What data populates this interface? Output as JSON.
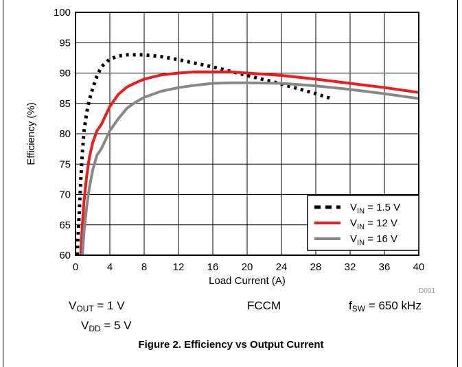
{
  "chart_data": {
    "type": "line",
    "title": "",
    "xlabel": "Load Current (A)",
    "ylabel": "Efficiency (%)",
    "xlim": [
      0,
      40
    ],
    "ylim": [
      60,
      100
    ],
    "xticks": [
      "0",
      "4",
      "8",
      "12",
      "16",
      "20",
      "24",
      "28",
      "32",
      "36",
      "40"
    ],
    "yticks": [
      "60",
      "65",
      "70",
      "75",
      "80",
      "85",
      "90",
      "95",
      "100"
    ],
    "grid": true,
    "legend_position": "bottom-right",
    "series": [
      {
        "name": "V_IN = 1.5 V",
        "name_main": "V",
        "name_sub": "IN",
        "name_rest": " = 1.5 V",
        "color": "#000000",
        "style": "dotted",
        "x": [
          0.2,
          0.4,
          0.6,
          0.8,
          1.0,
          1.3,
          1.6,
          2.0,
          2.5,
          3.0,
          4.0,
          5.0,
          6.0,
          8.0,
          10.0,
          12.0,
          14.0,
          16.0,
          18.0,
          20.0,
          22.0,
          24.0,
          26.0,
          28.0,
          29.8
        ],
        "y": [
          60.0,
          66.0,
          72.0,
          77.0,
          80.5,
          83.5,
          85.5,
          87.5,
          89.5,
          91.0,
          92.3,
          92.8,
          93.0,
          93.0,
          92.7,
          92.2,
          91.6,
          91.0,
          90.3,
          89.6,
          88.9,
          88.2,
          87.4,
          86.6,
          85.8
        ]
      },
      {
        "name": "V_IN = 12 V",
        "name_main": "V",
        "name_sub": "IN",
        "name_rest": " = 12 V",
        "color": "#ee1c1c",
        "style": "solid",
        "x": [
          0.6,
          0.8,
          1.0,
          1.3,
          1.6,
          2.0,
          2.5,
          3.0,
          3.5,
          4.0,
          5.0,
          6.0,
          7.0,
          8.0,
          10.0,
          12.0,
          14.0,
          16.0,
          18.0,
          20.0,
          24.0,
          28.0,
          32.0,
          36.0,
          40.0
        ],
        "y": [
          60.0,
          65.0,
          69.0,
          73.0,
          76.0,
          78.5,
          80.5,
          81.5,
          83.0,
          84.5,
          86.5,
          87.7,
          88.4,
          89.0,
          89.7,
          90.0,
          90.2,
          90.2,
          90.2,
          90.0,
          89.6,
          89.0,
          88.3,
          87.6,
          86.8
        ]
      },
      {
        "name": "V_IN = 16 V",
        "name_main": "V",
        "name_sub": "IN",
        "name_rest": " = 16 V",
        "color": "#888888",
        "style": "solid",
        "x": [
          0.8,
          1.0,
          1.3,
          1.6,
          2.0,
          2.5,
          3.0,
          3.5,
          4.0,
          5.0,
          6.0,
          7.0,
          8.0,
          10.0,
          12.0,
          14.0,
          16.0,
          18.0,
          20.0,
          24.0,
          28.0,
          32.0,
          36.0,
          40.0
        ],
        "y": [
          60.0,
          64.0,
          68.0,
          71.0,
          74.0,
          76.5,
          77.5,
          79.0,
          80.5,
          82.5,
          84.2,
          85.2,
          86.0,
          87.0,
          87.6,
          88.0,
          88.3,
          88.4,
          88.4,
          88.3,
          87.9,
          87.3,
          86.6,
          85.8
        ]
      }
    ]
  },
  "conditions": {
    "vout_main": "V",
    "vout_sub": "OUT",
    "vout_rest": " = 1 V",
    "vdd_main": "V",
    "vdd_sub": "DD",
    "vdd_rest": " = 5 V",
    "mode": "FCCM",
    "fsw_main": "f",
    "fsw_sub": "SW",
    "fsw_rest": " = 650 kHz"
  },
  "figure_code": "D001",
  "caption": "Figure 2. Efficiency vs Output Current"
}
